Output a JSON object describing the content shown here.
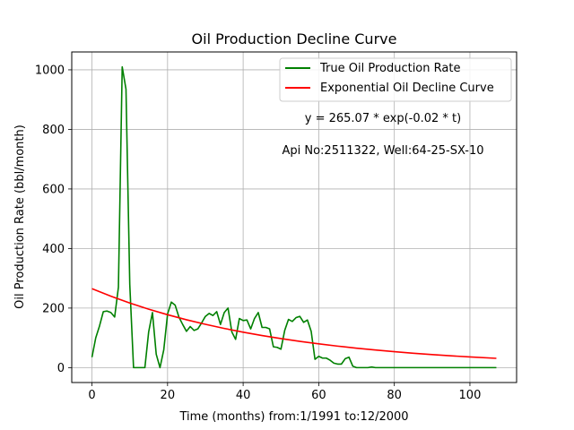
{
  "chart_data": {
    "type": "line",
    "title": "Oil Production Decline Curve",
    "xlabel": "Time (months) from:1/1991 to:12/2000",
    "ylabel": "Oil Production Rate (bbl/month)",
    "xlim": [
      -5.35,
      112.35
    ],
    "ylim": [
      -50,
      1060
    ],
    "xticks": [
      0,
      20,
      40,
      60,
      80,
      100
    ],
    "yticks": [
      0,
      200,
      400,
      600,
      800,
      1000
    ],
    "grid": true,
    "legend_position": "top-right",
    "annotations": [
      "y = 265.07 * exp(-0.02 * t)",
      "Api No:2511322, Well:64-25-SX-10"
    ],
    "series": [
      {
        "name": "True Oil Production Rate",
        "color": "#008000",
        "x": [
          0,
          1,
          2,
          3,
          4,
          5,
          6,
          7,
          8,
          9,
          10,
          11,
          12,
          13,
          14,
          15,
          16,
          17,
          18,
          19,
          20,
          21,
          22,
          23,
          24,
          25,
          26,
          27,
          28,
          29,
          30,
          31,
          32,
          33,
          34,
          35,
          36,
          37,
          38,
          39,
          40,
          41,
          42,
          43,
          44,
          45,
          46,
          47,
          48,
          49,
          50,
          51,
          52,
          53,
          54,
          55,
          56,
          57,
          58,
          59,
          60,
          61,
          62,
          63,
          64,
          65,
          66,
          67,
          68,
          69,
          70,
          71,
          72,
          73,
          74,
          75,
          76,
          77,
          78,
          79,
          80,
          81,
          82,
          83,
          84,
          85,
          86,
          87,
          88,
          89,
          90,
          91,
          92,
          93,
          94,
          95,
          96,
          97,
          98,
          99,
          100,
          101,
          102,
          103,
          104,
          105,
          106,
          107
        ],
        "y": [
          35,
          100,
          140,
          188,
          190,
          185,
          170,
          270,
          1010,
          935,
          280,
          0,
          0,
          0,
          0,
          120,
          185,
          45,
          0,
          60,
          180,
          220,
          210,
          170,
          145,
          122,
          138,
          125,
          130,
          150,
          172,
          182,
          175,
          188,
          145,
          185,
          200,
          120,
          95,
          165,
          158,
          160,
          130,
          165,
          185,
          135,
          135,
          130,
          70,
          68,
          62,
          125,
          162,
          155,
          168,
          172,
          152,
          160,
          122,
          28,
          38,
          32,
          32,
          25,
          15,
          12,
          12,
          30,
          35,
          5,
          0,
          0,
          0,
          0,
          2,
          0,
          0,
          0,
          0,
          0,
          0,
          0,
          0,
          0,
          0,
          0,
          0,
          0,
          0,
          0,
          0,
          0,
          0,
          0,
          0,
          0,
          0,
          0,
          0,
          0,
          0,
          0,
          0,
          0,
          0,
          0,
          0,
          0
        ]
      },
      {
        "name": "Exponential Oil Decline Curve",
        "color": "#ff0000",
        "x": [
          0,
          5,
          10,
          15,
          20,
          25,
          30,
          35,
          40,
          45,
          50,
          55,
          60,
          65,
          70,
          75,
          80,
          85,
          90,
          95,
          100,
          107
        ],
        "y": [
          265.07,
          239.85,
          217.02,
          196.36,
          177.68,
          160.76,
          145.47,
          131.62,
          119.1,
          107.76,
          97.51,
          88.23,
          79.83,
          72.23,
          65.36,
          59.14,
          53.51,
          48.42,
          43.81,
          39.64,
          35.87,
          31.2
        ]
      }
    ]
  }
}
